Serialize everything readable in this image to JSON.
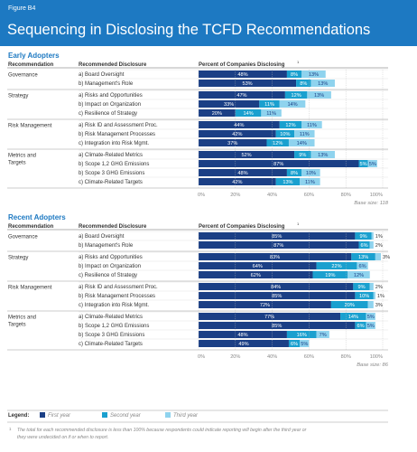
{
  "header": {
    "figure_label": "Figure B4",
    "title": "Sequencing in Disclosing the TCFD Recommendations"
  },
  "colors": {
    "header_bg": "#1d79c2",
    "section_title": "#1d79c2",
    "first_year": "#1b3f85",
    "second_year": "#1aa0cf",
    "third_year": "#8fd3ee",
    "text": "#333333",
    "muted": "#888888"
  },
  "column_headers": {
    "recommendation": "Recommendation",
    "recommended_disclosure": "Recommended Disclosure",
    "percent": "Percent of Companies Disclosing",
    "percent_footnote_mark": "1"
  },
  "chart_data": [
    {
      "type": "bar",
      "title": "Early Adopters",
      "stacked": true,
      "orientation": "horizontal",
      "xlim": [
        0,
        100
      ],
      "x_ticks": [
        "0%",
        "20%",
        "40%",
        "60%",
        "80%",
        "100%"
      ],
      "base_size": "Base size: 118",
      "series_names": [
        "First year",
        "Second year",
        "Third year"
      ],
      "groups": [
        {
          "recommendation": "Governance",
          "rows": [
            {
              "label": "a) Board Oversight",
              "values": [
                48,
                8,
                13
              ],
              "labels": [
                "48%",
                "8%",
                "13%"
              ]
            },
            {
              "label": "b) Management's Role",
              "values": [
                53,
                8,
                13
              ],
              "labels": [
                "53%",
                "8%",
                "13%"
              ]
            }
          ]
        },
        {
          "recommendation": "Strategy",
          "rows": [
            {
              "label": "a) Risks and Opportunities",
              "values": [
                47,
                12,
                13
              ],
              "labels": [
                "47%",
                "12%",
                "13%"
              ]
            },
            {
              "label": "b) Impact on Organization",
              "values": [
                33,
                11,
                14
              ],
              "labels": [
                "33%",
                "11%",
                "14%"
              ]
            },
            {
              "label": "c) Resilience of Strategy",
              "values": [
                20,
                14,
                11
              ],
              "labels": [
                "20%",
                "14%",
                "11%"
              ]
            }
          ]
        },
        {
          "recommendation": "Risk Management",
          "rows": [
            {
              "label": "a) Risk ID and Assessment Proc.",
              "values": [
                44,
                12,
                11
              ],
              "labels": [
                "44%",
                "12%",
                "11%"
              ]
            },
            {
              "label": "b) Risk Management Processes",
              "values": [
                42,
                10,
                11
              ],
              "labels": [
                "42%",
                "10%",
                "11%"
              ]
            },
            {
              "label": "c) Integration into Risk Mgmt.",
              "values": [
                37,
                12,
                14
              ],
              "labels": [
                "37%",
                "12%",
                "14%"
              ]
            }
          ]
        },
        {
          "recommendation": "Metrics and Targets",
          "rows": [
            {
              "label": "a) Climate-Related Metrics",
              "values": [
                52,
                9,
                13
              ],
              "labels": [
                "52%",
                "9%",
                "13%"
              ]
            },
            {
              "label": "b) Scope 1,2 GHG Emissions",
              "values": [
                87,
                5,
                5
              ],
              "labels": [
                "87%",
                "5%",
                "5%"
              ]
            },
            {
              "label": "b) Scope 3 GHG Emissions",
              "values": [
                48,
                8,
                10
              ],
              "labels": [
                "48%",
                "8%",
                "10%"
              ]
            },
            {
              "label": "c) Climate-Related Targets",
              "values": [
                42,
                13,
                11
              ],
              "labels": [
                "42%",
                "13%",
                "11%"
              ]
            }
          ]
        }
      ]
    },
    {
      "type": "bar",
      "title": "Recent Adopters",
      "stacked": true,
      "orientation": "horizontal",
      "xlim": [
        0,
        100
      ],
      "x_ticks": [
        "0%",
        "20%",
        "40%",
        "60%",
        "80%",
        "100%"
      ],
      "base_size": "Base size: 86",
      "series_names": [
        "First year",
        "Second year",
        "Third year"
      ],
      "groups": [
        {
          "recommendation": "Governance",
          "rows": [
            {
              "label": "a) Board Oversight",
              "values": [
                85,
                9,
                1
              ],
              "labels": [
                "85%",
                "9%",
                "1%"
              ]
            },
            {
              "label": "b) Management's Role",
              "values": [
                87,
                6,
                2
              ],
              "labels": [
                "87%",
                "6%",
                "2%"
              ]
            }
          ]
        },
        {
          "recommendation": "Strategy",
          "rows": [
            {
              "label": "a) Risks and Opportunities",
              "values": [
                83,
                13,
                3
              ],
              "labels": [
                "83%",
                "13%",
                "3%"
              ]
            },
            {
              "label": "b) Impact on Organization",
              "values": [
                64,
                22,
                6
              ],
              "labels": [
                "64%",
                "22%",
                "6%"
              ]
            },
            {
              "label": "c) Resilience of Strategy",
              "values": [
                62,
                19,
                12
              ],
              "labels": [
                "62%",
                "19%",
                "12%"
              ]
            }
          ]
        },
        {
          "recommendation": "Risk Management",
          "rows": [
            {
              "label": "a) Risk ID and Assessment Proc.",
              "values": [
                84,
                9,
                2
              ],
              "labels": [
                "84%",
                "9%",
                "2%"
              ]
            },
            {
              "label": "b) Risk Management Processes",
              "values": [
                85,
                10,
                1
              ],
              "labels": [
                "85%",
                "10%",
                "1%"
              ]
            },
            {
              "label": "c) Integration into Risk Mgmt.",
              "values": [
                72,
                20,
                3
              ],
              "labels": [
                "72%",
                "20%",
                "3%"
              ]
            }
          ]
        },
        {
          "recommendation": "Metrics and Targets",
          "rows": [
            {
              "label": "a) Climate-Related Metrics",
              "values": [
                77,
                14,
                5
              ],
              "labels": [
                "77%",
                "14%",
                "5%"
              ]
            },
            {
              "label": "b) Scope 1,2 GHG Emissions",
              "values": [
                85,
                6,
                5
              ],
              "labels": [
                "85%",
                "6%",
                "5%"
              ]
            },
            {
              "label": "b) Scope 3 GHG Emissions",
              "values": [
                48,
                16,
                7
              ],
              "labels": [
                "48%",
                "16%",
                "7%"
              ]
            },
            {
              "label": "c) Climate-Related Targets",
              "values": [
                49,
                6,
                5
              ],
              "labels": [
                "49%",
                "6%",
                "5%"
              ]
            }
          ]
        }
      ]
    }
  ],
  "legend": {
    "title": "Legend:",
    "items": [
      "First year",
      "Second year",
      "Third year"
    ]
  },
  "footnote": {
    "mark": "1",
    "text_line1": "The total for each recommended disclosure is less than 100% because respondents could indicate reporting will begin after the third year or",
    "text_line2": "they were undecided on if or when to report."
  }
}
